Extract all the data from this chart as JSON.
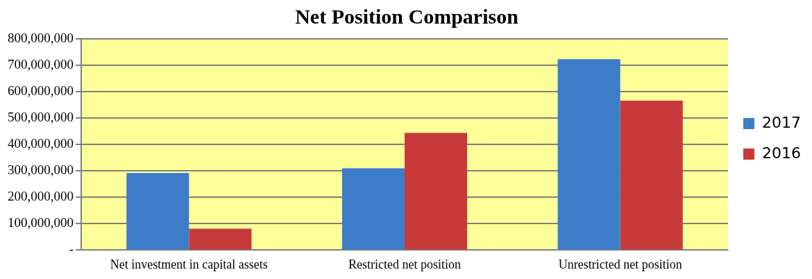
{
  "chart_data": {
    "type": "bar",
    "title": "Net Position Comparison",
    "categories": [
      "Net investment in capital assets",
      "Restricted net position",
      "Unrestricted net position"
    ],
    "series": [
      {
        "name": "2017",
        "color": "#3d7cc9",
        "values": [
          292000000,
          310000000,
          723000000
        ]
      },
      {
        "name": "2016",
        "color": "#c8393a",
        "values": [
          81000000,
          444000000,
          566000000
        ]
      }
    ],
    "ylim": [
      0,
      800000000
    ],
    "yticks": [
      {
        "value": 0,
        "label": "-"
      },
      {
        "value": 100000000,
        "label": "100,000,000"
      },
      {
        "value": 200000000,
        "label": "200,000,000"
      },
      {
        "value": 300000000,
        "label": "300,000,000"
      },
      {
        "value": 400000000,
        "label": "400,000,000"
      },
      {
        "value": 500000000,
        "label": "500,000,000"
      },
      {
        "value": 600000000,
        "label": "600,000,000"
      },
      {
        "value": 700000000,
        "label": "700,000,000"
      },
      {
        "value": 800000000,
        "label": "800,000,000"
      }
    ],
    "grid": "y",
    "legend": "right"
  }
}
